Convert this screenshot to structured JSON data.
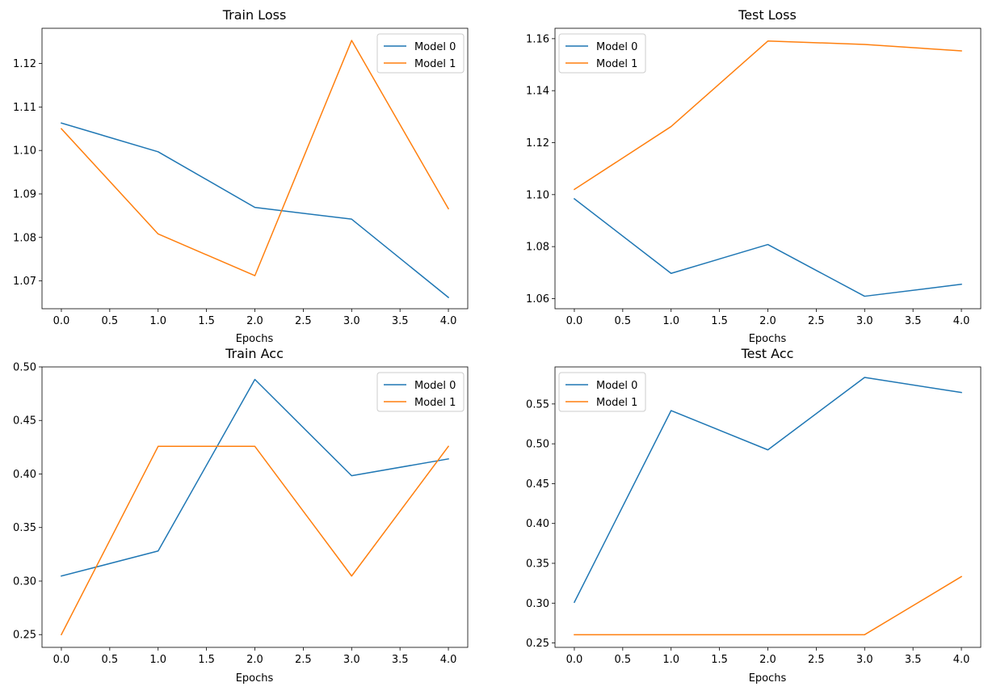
{
  "figure": {
    "colors": {
      "model_0": "#1f77b4",
      "model_1": "#ff7f0e"
    }
  },
  "chart_data": [
    {
      "type": "line",
      "title": "Train Loss",
      "xlabel": "Epochs",
      "ylabel": "",
      "x": [
        0,
        1,
        2,
        3,
        4
      ],
      "xlim": [
        -0.2,
        4.2
      ],
      "ylim": [
        1.0636,
        1.1281
      ],
      "xticks": [
        0.0,
        0.5,
        1.0,
        1.5,
        2.0,
        2.5,
        3.0,
        3.5,
        4.0
      ],
      "xtick_labels": [
        "0.0",
        "0.5",
        "1.0",
        "1.5",
        "2.0",
        "2.5",
        "3.0",
        "3.5",
        "4.0"
      ],
      "yticks": [
        1.07,
        1.08,
        1.09,
        1.1,
        1.11,
        1.12
      ],
      "ytick_labels": [
        "1.07",
        "1.08",
        "1.09",
        "1.10",
        "1.11",
        "1.12"
      ],
      "legend": "top-right",
      "series": [
        {
          "name": "Model 0",
          "color": "#1f77b4",
          "values": [
            1.1063,
            1.0997,
            1.0869,
            1.0842,
            1.0662
          ]
        },
        {
          "name": "Model 1",
          "color": "#ff7f0e",
          "values": [
            1.105,
            1.0808,
            1.0712,
            1.1253,
            1.0866
          ]
        }
      ]
    },
    {
      "type": "line",
      "title": "Test Loss",
      "xlabel": "Epochs",
      "ylabel": "",
      "x": [
        0,
        1,
        2,
        3,
        4
      ],
      "xlim": [
        -0.2,
        4.2
      ],
      "ylim": [
        1.0561,
        1.164
      ],
      "xticks": [
        0.0,
        0.5,
        1.0,
        1.5,
        2.0,
        2.5,
        3.0,
        3.5,
        4.0
      ],
      "xtick_labels": [
        "0.0",
        "0.5",
        "1.0",
        "1.5",
        "2.0",
        "2.5",
        "3.0",
        "3.5",
        "4.0"
      ],
      "yticks": [
        1.06,
        1.08,
        1.1,
        1.12,
        1.14,
        1.16
      ],
      "ytick_labels": [
        "1.06",
        "1.08",
        "1.10",
        "1.12",
        "1.14",
        "1.16"
      ],
      "legend": "top-left",
      "series": [
        {
          "name": "Model 0",
          "color": "#1f77b4",
          "values": [
            1.0984,
            1.0697,
            1.0808,
            1.0609,
            1.0655
          ]
        },
        {
          "name": "Model 1",
          "color": "#ff7f0e",
          "values": [
            1.102,
            1.1262,
            1.1591,
            1.1578,
            1.1553
          ]
        }
      ]
    },
    {
      "type": "line",
      "title": "Train Acc",
      "xlabel": "Epochs",
      "ylabel": "",
      "x": [
        0,
        1,
        2,
        3,
        4
      ],
      "xlim": [
        -0.2,
        4.2
      ],
      "ylim": [
        0.2381,
        0.5
      ],
      "xticks": [
        0.0,
        0.5,
        1.0,
        1.5,
        2.0,
        2.5,
        3.0,
        3.5,
        4.0
      ],
      "xtick_labels": [
        "0.0",
        "0.5",
        "1.0",
        "1.5",
        "2.0",
        "2.5",
        "3.0",
        "3.5",
        "4.0"
      ],
      "yticks": [
        0.25,
        0.3,
        0.35,
        0.4,
        0.45,
        0.5
      ],
      "ytick_labels": [
        "0.25",
        "0.30",
        "0.35",
        "0.40",
        "0.45",
        "0.50"
      ],
      "legend": "top-right",
      "series": [
        {
          "name": "Model 0",
          "color": "#1f77b4",
          "values": [
            0.3047,
            0.3281,
            0.4883,
            0.3984,
            0.4141
          ]
        },
        {
          "name": "Model 1",
          "color": "#ff7f0e",
          "values": [
            0.25,
            0.4258,
            0.4258,
            0.3047,
            0.4258
          ]
        }
      ]
    },
    {
      "type": "line",
      "title": "Test Acc",
      "xlabel": "Epochs",
      "ylabel": "",
      "x": [
        0,
        1,
        2,
        3,
        4
      ],
      "xlim": [
        -0.2,
        4.2
      ],
      "ylim": [
        0.2445,
        0.5965
      ],
      "xticks": [
        0.0,
        0.5,
        1.0,
        1.5,
        2.0,
        2.5,
        3.0,
        3.5,
        4.0
      ],
      "xtick_labels": [
        "0.0",
        "0.5",
        "1.0",
        "1.5",
        "2.0",
        "2.5",
        "3.0",
        "3.5",
        "4.0"
      ],
      "yticks": [
        0.25,
        0.3,
        0.35,
        0.4,
        0.45,
        0.5,
        0.55
      ],
      "ytick_labels": [
        "0.25",
        "0.30",
        "0.35",
        "0.40",
        "0.45",
        "0.50",
        "0.55"
      ],
      "legend": "top-left",
      "series": [
        {
          "name": "Model 0",
          "color": "#1f77b4",
          "values": [
            0.3011,
            0.5417,
            0.4924,
            0.5833,
            0.5644
          ]
        },
        {
          "name": "Model 1",
          "color": "#ff7f0e",
          "values": [
            0.2604,
            0.2604,
            0.2604,
            0.2604,
            0.3333
          ]
        }
      ]
    }
  ]
}
